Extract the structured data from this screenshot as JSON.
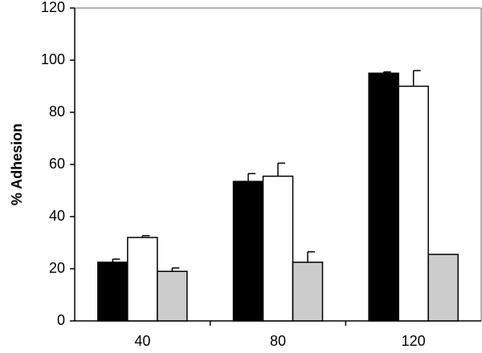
{
  "chart_data": {
    "type": "bar",
    "y_label": "% Adhesion",
    "categories": [
      "40",
      "80",
      "120"
    ],
    "series": [
      {
        "color": "#000000",
        "values": [
          22.5,
          53.5,
          95
        ],
        "errors": [
          1.2,
          3,
          0.5
        ]
      },
      {
        "color": "#ffffff",
        "values": [
          32,
          55.5,
          90
        ],
        "errors": [
          0.7,
          5,
          6
        ]
      },
      {
        "color": "#cccccc",
        "values": [
          19,
          22.5,
          25.5
        ],
        "errors": [
          1.3,
          4,
          null
        ]
      }
    ],
    "ylim": [
      0,
      120
    ],
    "yticks": [
      0,
      20,
      40,
      60,
      80,
      100,
      120
    ],
    "grid": false
  }
}
